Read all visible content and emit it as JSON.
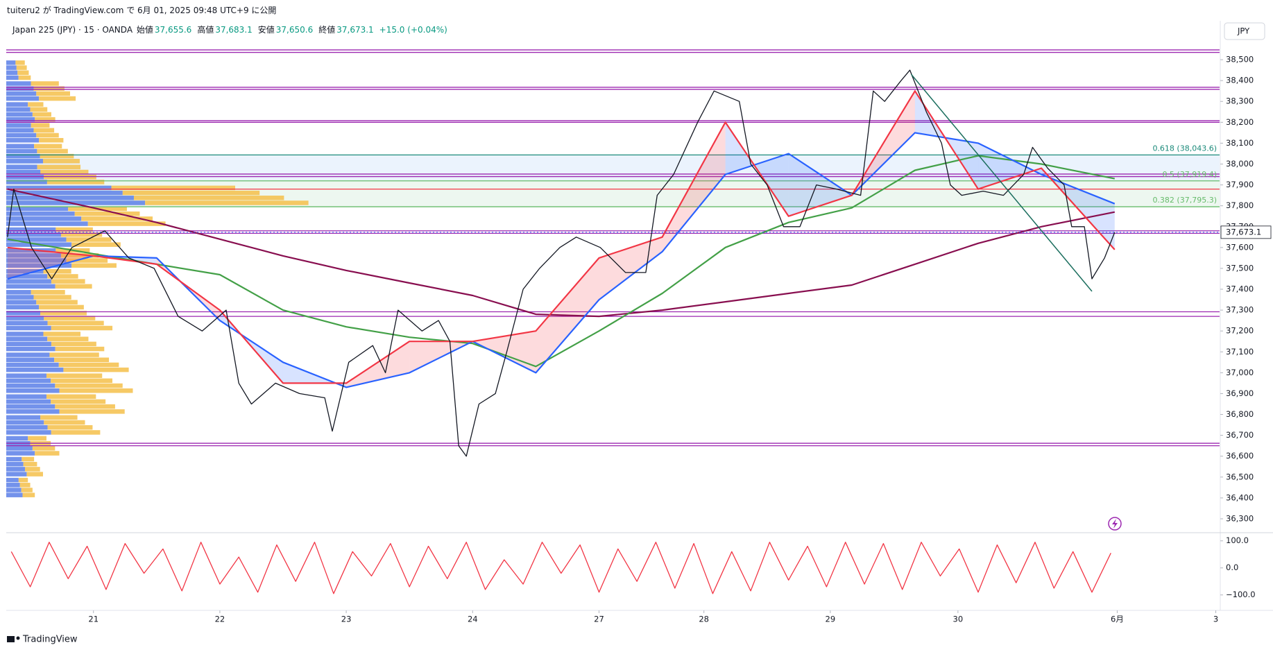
{
  "header": {
    "publish": "tuiteru2 が TradingView.com で 6月 01, 2025 09:48 UTC+9 に公開",
    "symbol": "Japan 225 (JPY) · 15 · OANDA",
    "ohlc": [
      {
        "label": "始値",
        "value": "37,655.6"
      },
      {
        "label": "高値",
        "value": "37,683.1"
      },
      {
        "label": "安値",
        "value": "37,650.6"
      },
      {
        "label": "終値",
        "value": "37,673.1"
      }
    ],
    "change": "+15.0 (+0.04%)",
    "currency": "JPY"
  },
  "footer": {
    "brand": "TradingView"
  },
  "chart_data": [
    {
      "type": "line",
      "xlim": [
        0.31,
        9.91
      ],
      "ylim": [
        36240,
        38590
      ],
      "xticks": [
        {
          "value": 1,
          "label": "21"
        },
        {
          "value": 2,
          "label": "22"
        },
        {
          "value": 3,
          "label": "23"
        },
        {
          "value": 4,
          "label": "24"
        },
        {
          "value": 5,
          "label": "27"
        },
        {
          "value": 5.83,
          "label": "28"
        },
        {
          "value": 6.83,
          "label": "29"
        },
        {
          "value": 7.84,
          "label": "30"
        },
        {
          "value": 9.1,
          "label": "6月"
        },
        {
          "value": 9.88,
          "label": "3"
        }
      ],
      "yticks": [
        {
          "value": 36300,
          "label": "36,300"
        },
        {
          "value": 36400,
          "label": "36,400"
        },
        {
          "value": 36500,
          "label": "36,500"
        },
        {
          "value": 36600,
          "label": "36,600"
        },
        {
          "value": 36700,
          "label": "36,700"
        },
        {
          "value": 36800,
          "label": "36,800"
        },
        {
          "value": 36900,
          "label": "36,900"
        },
        {
          "value": 37000,
          "label": "37,000"
        },
        {
          "value": 37100,
          "label": "37,100"
        },
        {
          "value": 37200,
          "label": "37,200"
        },
        {
          "value": 37300,
          "label": "37,300"
        },
        {
          "value": 37400,
          "label": "37,400"
        },
        {
          "value": 37500,
          "label": "37,500"
        },
        {
          "value": 37600,
          "label": "37,600"
        },
        {
          "value": 37700,
          "label": "37,700"
        },
        {
          "value": 37800,
          "label": "37,800"
        },
        {
          "value": 37900,
          "label": "37,900"
        },
        {
          "value": 38000,
          "label": "38,000"
        },
        {
          "value": 38100,
          "label": "38,100"
        },
        {
          "value": 38200,
          "label": "38,200"
        },
        {
          "value": 38300,
          "label": "38,300"
        },
        {
          "value": 38400,
          "label": "38,400"
        },
        {
          "value": 38500,
          "label": "38,500"
        }
      ],
      "price_label": {
        "value": 37673.1,
        "label": "37,673.1"
      },
      "series": [
        {
          "color": "#131722",
          "x": [
            0.32,
            0.37,
            0.51,
            0.67,
            0.83,
            1.09,
            1.28,
            1.48,
            1.67,
            1.86,
            2.05,
            2.15,
            2.25,
            2.44,
            2.63,
            2.83,
            2.89,
            3.02,
            3.21,
            3.31,
            3.41,
            3.6,
            3.73,
            3.82,
            3.89,
            3.95,
            4.05,
            4.18,
            4.27,
            4.4,
            4.53,
            4.69,
            4.82,
            5.01,
            5.21,
            5.37,
            5.46,
            5.59,
            5.78,
            5.91,
            6.11,
            6.2,
            6.33,
            6.46,
            6.59,
            6.72,
            6.88,
            7.07,
            7.17,
            7.26,
            7.39,
            7.46,
            7.59,
            7.71,
            7.78,
            7.87,
            8.04,
            8.2,
            8.36,
            8.43,
            8.55,
            8.68,
            8.74,
            8.84,
            8.9,
            9.0,
            9.08
          ],
          "values": [
            37650,
            37880,
            37600,
            37450,
            37600,
            37680,
            37550,
            37500,
            37270,
            37200,
            37300,
            36950,
            36850,
            36950,
            36900,
            36880,
            36720,
            37050,
            37130,
            37000,
            37300,
            37200,
            37250,
            37150,
            36650,
            36600,
            36850,
            36900,
            37100,
            37400,
            37500,
            37600,
            37650,
            37600,
            37480,
            37480,
            37850,
            37950,
            38200,
            38350,
            38300,
            38000,
            37900,
            37700,
            37700,
            37900,
            37880,
            37850,
            38350,
            38300,
            38400,
            38450,
            38250,
            38100,
            37900,
            37850,
            37870,
            37850,
            37950,
            38080,
            37980,
            37900,
            37700,
            37700,
            37450,
            37550,
            37673.1
          ]
        },
        {
          "color": "#f23645",
          "x": [
            0.32,
            1,
            1.5,
            2,
            2.5,
            3,
            3.5,
            4,
            4.5,
            5,
            5.5,
            6,
            6.5,
            7,
            7.5,
            8,
            8.5,
            9.08
          ],
          "values": [
            37600,
            37560,
            37520,
            37300,
            36950,
            36950,
            37150,
            37150,
            37200,
            37550,
            37650,
            38200,
            37750,
            37850,
            38350,
            37880,
            37980,
            37590
          ]
        },
        {
          "color": "#2962ff",
          "x": [
            0.32,
            1,
            1.5,
            2,
            2.5,
            3,
            3.5,
            4,
            4.5,
            5,
            5.5,
            6,
            6.5,
            7,
            7.5,
            8,
            8.5,
            9.08
          ],
          "values": [
            37450,
            37560,
            37550,
            37250,
            37050,
            36930,
            37000,
            37150,
            37000,
            37350,
            37580,
            37950,
            38050,
            37850,
            38150,
            38100,
            37950,
            37810
          ]
        },
        {
          "color": "#43a047",
          "x": [
            0.32,
            1,
            1.5,
            2,
            2.5,
            3,
            3.5,
            4,
            4.5,
            5,
            5.5,
            6,
            6.5,
            7,
            7.5,
            8,
            8.5,
            9.08
          ],
          "values": [
            37640,
            37570,
            37520,
            37470,
            37300,
            37220,
            37170,
            37140,
            37030,
            37200,
            37380,
            37600,
            37720,
            37790,
            37970,
            38040,
            38000,
            37930
          ]
        },
        {
          "color": "#880e4f",
          "x": [
            0.32,
            1,
            1.5,
            2,
            2.5,
            3,
            3.5,
            4,
            4.5,
            5,
            5.5,
            6,
            6.5,
            7,
            7.5,
            8,
            8.5,
            9.08
          ],
          "values": [
            37880,
            37790,
            37720,
            37640,
            37560,
            37490,
            37430,
            37370,
            37280,
            37270,
            37300,
            37340,
            37380,
            37420,
            37520,
            37620,
            37700,
            37770
          ]
        }
      ],
      "fill_between": [
        1,
        2
      ],
      "trendline": {
        "color": "#1b6e5e",
        "x": [
          7.47,
          8.9
        ],
        "values": [
          38430,
          37390
        ]
      },
      "levels": [
        {
          "value": 38547,
          "color": "#9c27b0"
        },
        {
          "value": 38535,
          "color": "#9c27b0"
        },
        {
          "value": 38368,
          "color": "#9c27b0"
        },
        {
          "value": 38358,
          "color": "#9c27b0"
        },
        {
          "value": 38208,
          "color": "#9c27b0"
        },
        {
          "value": 38200,
          "color": "#9c27b0"
        },
        {
          "value": 37952,
          "color": "#9c27b0"
        },
        {
          "value": 37940,
          "color": "#9c27b0"
        },
        {
          "value": 37880,
          "color": "#f23645"
        },
        {
          "value": 37680,
          "color": "#9c27b0"
        },
        {
          "value": 37668,
          "color": "#9c27b0"
        },
        {
          "value": 37292,
          "color": "#9c27b0"
        },
        {
          "value": 37270,
          "color": "#9c27b0"
        },
        {
          "value": 36662,
          "color": "#9c27b0"
        },
        {
          "value": 36650,
          "color": "#9c27b0"
        }
      ],
      "fib": [
        {
          "value": 38043.6,
          "label": "0.618 (38,043.6)",
          "color": "#1b8a7a"
        },
        {
          "value": 37919.4,
          "label": "0.5 (37,919.4)",
          "color": "#66bb6a"
        },
        {
          "value": 37795.3,
          "label": "0.382 (37,795.3)",
          "color": "#66bb6a"
        }
      ],
      "volume_profile": {
        "colors": [
          "#5b7fe8",
          "#f5c04a"
        ],
        "prices": [
          36450,
          36550,
          36650,
          36750,
          36850,
          36950,
          37050,
          37150,
          37250,
          37350,
          37450,
          37550,
          37650,
          37750,
          37850,
          37950,
          38050,
          38150,
          38250,
          38350,
          38450
        ],
        "up": [
          20,
          25,
          35,
          55,
          65,
          65,
          70,
          60,
          55,
          40,
          60,
          80,
          80,
          100,
          170,
          50,
          45,
          40,
          35,
          40,
          15
        ],
        "down": [
          15,
          20,
          30,
          60,
          80,
          90,
          80,
          60,
          75,
          55,
          45,
          55,
          60,
          95,
          200,
          70,
          45,
          30,
          25,
          45,
          15
        ]
      }
    },
    {
      "type": "line",
      "xlim": [
        0.31,
        9.91
      ],
      "ylim": [
        -152,
        125
      ],
      "yticks": [
        {
          "value": 100,
          "label": "100.0"
        },
        {
          "value": 0,
          "label": "0.0"
        },
        {
          "value": -100,
          "label": "−100.0"
        }
      ],
      "series": [
        {
          "color": "#f23645",
          "x": [
            0.35,
            0.5,
            0.65,
            0.8,
            0.95,
            1.1,
            1.25,
            1.4,
            1.55,
            1.7,
            1.85,
            2,
            2.15,
            2.3,
            2.45,
            2.6,
            2.75,
            2.9,
            3.05,
            3.2,
            3.35,
            3.5,
            3.65,
            3.8,
            3.95,
            4.1,
            4.25,
            4.4,
            4.55,
            4.7,
            4.85,
            5,
            5.15,
            5.3,
            5.45,
            5.6,
            5.75,
            5.9,
            6.05,
            6.2,
            6.35,
            6.5,
            6.65,
            6.8,
            6.95,
            7.1,
            7.25,
            7.4,
            7.55,
            7.7,
            7.85,
            8,
            8.15,
            8.3,
            8.45,
            8.6,
            8.75,
            8.9,
            9.05
          ],
          "values": [
            60,
            -70,
            95,
            -40,
            80,
            -80,
            90,
            -20,
            70,
            -85,
            95,
            -60,
            40,
            -90,
            85,
            -50,
            95,
            -95,
            60,
            -30,
            90,
            -70,
            80,
            -40,
            95,
            -80,
            30,
            -60,
            95,
            -20,
            85,
            -90,
            70,
            -50,
            95,
            -75,
            90,
            -95,
            60,
            -85,
            95,
            -45,
            80,
            -70,
            95,
            -60,
            90,
            -80,
            95,
            -30,
            70,
            -90,
            85,
            -55,
            95,
            -75,
            60,
            -90,
            55
          ]
        }
      ]
    }
  ]
}
